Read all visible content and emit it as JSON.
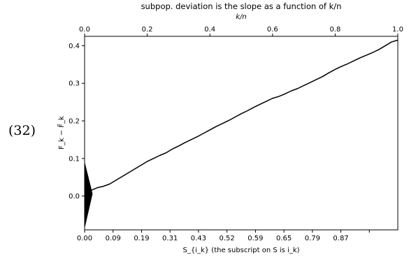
{
  "equation_number": "(32)",
  "chart_data": {
    "type": "line",
    "title": "subpop. deviation is the slope as a function of k/n",
    "xlabel": "S_{i_k} (the subscript on S is i_k)",
    "top_xlabel": "k/n",
    "ylabel": "F_k − F̃_k",
    "xlim": [
      0,
      1
    ],
    "ylim": [
      -0.09,
      0.425
    ],
    "x_ticks": [
      0.0,
      0.0909,
      0.1818,
      0.2727,
      0.3636,
      0.4545,
      0.5455,
      0.6364,
      0.7273,
      0.8182,
      0.9091
    ],
    "x_tick_labels": [
      "0.00",
      "0.09",
      "0.19",
      "0.31",
      "0.43",
      "0.52",
      "0.59",
      "0.65",
      "0.79",
      "0.87",
      ""
    ],
    "top_x_ticks": [
      0.0,
      0.2,
      0.4,
      0.6,
      0.8,
      1.0
    ],
    "top_x_tick_labels": [
      "0.0",
      "0.2",
      "0.4",
      "0.6",
      "0.8",
      "1.0"
    ],
    "y_ticks": [
      0.0,
      0.1,
      0.2,
      0.3,
      0.4
    ],
    "y_tick_labels": [
      "0.0",
      "0.1",
      "0.2",
      "0.3",
      "0.4"
    ],
    "series": [
      {
        "x": [
          0.0,
          0.02,
          0.04,
          0.06,
          0.08,
          0.1,
          0.12,
          0.14,
          0.16,
          0.18,
          0.2,
          0.22,
          0.24,
          0.26,
          0.28,
          0.3,
          0.32,
          0.34,
          0.36,
          0.38,
          0.4,
          0.42,
          0.44,
          0.46,
          0.48,
          0.5,
          0.52,
          0.54,
          0.56,
          0.58,
          0.6,
          0.62,
          0.64,
          0.66,
          0.68,
          0.7,
          0.72,
          0.74,
          0.76,
          0.78,
          0.8,
          0.82,
          0.84,
          0.86,
          0.88,
          0.9,
          0.92,
          0.94,
          0.96,
          0.98,
          1.0
        ],
        "y": [
          0.0,
          0.015,
          0.022,
          0.026,
          0.032,
          0.042,
          0.052,
          0.062,
          0.072,
          0.082,
          0.092,
          0.1,
          0.108,
          0.115,
          0.125,
          0.133,
          0.142,
          0.15,
          0.158,
          0.167,
          0.176,
          0.185,
          0.193,
          0.201,
          0.21,
          0.219,
          0.227,
          0.236,
          0.244,
          0.252,
          0.26,
          0.265,
          0.272,
          0.28,
          0.286,
          0.294,
          0.302,
          0.31,
          0.318,
          0.328,
          0.337,
          0.345,
          0.352,
          0.36,
          0.368,
          0.375,
          0.382,
          0.39,
          0.4,
          0.41,
          0.415
        ]
      }
    ],
    "triangle": {
      "base_y": [
        -0.085,
        0.09
      ],
      "apex": [
        0.025,
        0.006
      ]
    },
    "grid": false,
    "legend": "none"
  }
}
